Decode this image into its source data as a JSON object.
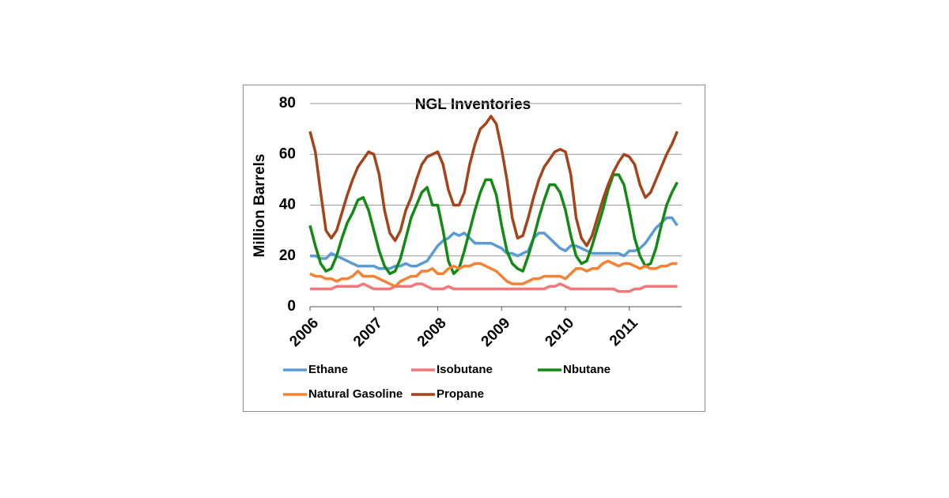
{
  "chart_data": {
    "type": "line",
    "title": "NGL Inventories",
    "y_label": "Million  Barrels",
    "categories": [
      "2006",
      null,
      null,
      null,
      null,
      null,
      null,
      null,
      null,
      null,
      null,
      null,
      "2007",
      null,
      null,
      null,
      null,
      null,
      null,
      null,
      null,
      null,
      null,
      null,
      "2008",
      null,
      null,
      null,
      null,
      null,
      null,
      null,
      null,
      null,
      null,
      null,
      "2009",
      null,
      null,
      null,
      null,
      null,
      null,
      null,
      null,
      null,
      null,
      null,
      "2010",
      null,
      null,
      null,
      null,
      null,
      null,
      null,
      null,
      null,
      null,
      null,
      "2011",
      null,
      null,
      null,
      null,
      null,
      null,
      null,
      null,
      null
    ],
    "series": [
      {
        "name": "Ethane",
        "color": "#5b9bd5",
        "values": [
          20,
          20,
          19,
          19,
          21,
          20,
          19,
          18,
          17,
          16,
          16,
          16,
          16,
          15,
          15,
          15,
          16,
          16,
          17,
          16,
          16,
          17,
          18,
          21,
          24,
          26,
          27,
          29,
          28,
          29,
          27,
          25,
          25,
          25,
          25,
          24,
          23,
          21,
          21,
          20,
          21,
          22,
          27,
          29,
          29,
          27,
          25,
          23,
          22,
          24,
          24,
          23,
          22,
          21,
          21,
          21,
          21,
          21,
          21,
          20,
          22,
          22,
          23,
          25,
          28,
          31,
          33,
          35,
          35,
          32
        ]
      },
      {
        "name": "Isobutane",
        "color": "#f4777a",
        "values": [
          7,
          7,
          7,
          7,
          7,
          8,
          8,
          8,
          8,
          8,
          9,
          8,
          7,
          7,
          7,
          7,
          8,
          8,
          8,
          8,
          9,
          9,
          8,
          7,
          7,
          7,
          8,
          7,
          7,
          7,
          7,
          7,
          7,
          7,
          7,
          7,
          7,
          7,
          7,
          7,
          7,
          7,
          7,
          7,
          7,
          8,
          8,
          9,
          8,
          7,
          7,
          7,
          7,
          7,
          7,
          7,
          7,
          7,
          6,
          6,
          6,
          7,
          7,
          8,
          8,
          8,
          8,
          8,
          8,
          8
        ]
      },
      {
        "name": "Nbutane",
        "color": "#138a13",
        "values": [
          32,
          24,
          17,
          14,
          15,
          20,
          27,
          33,
          37,
          42,
          43,
          38,
          30,
          22,
          16,
          13,
          14,
          19,
          27,
          35,
          40,
          45,
          47,
          40,
          40,
          30,
          18,
          13,
          15,
          22,
          30,
          38,
          45,
          50,
          50,
          44,
          32,
          22,
          17,
          15,
          14,
          20,
          27,
          35,
          42,
          48,
          48,
          45,
          38,
          28,
          20,
          17,
          18,
          24,
          31,
          38,
          46,
          52,
          52,
          48,
          38,
          27,
          20,
          16,
          17,
          23,
          32,
          40,
          45,
          49
        ]
      },
      {
        "name": "Natural Gasoline",
        "color": "#f58233",
        "values": [
          13,
          12,
          12,
          11,
          11,
          10,
          11,
          11,
          12,
          14,
          12,
          12,
          12,
          11,
          10,
          9,
          8,
          10,
          11,
          12,
          12,
          14,
          14,
          15,
          13,
          13,
          15,
          16,
          15,
          16,
          16,
          17,
          17,
          16,
          15,
          14,
          12,
          10,
          9,
          9,
          9,
          10,
          11,
          11,
          12,
          12,
          12,
          12,
          11,
          13,
          15,
          15,
          14,
          15,
          15,
          17,
          18,
          17,
          16,
          17,
          17,
          16,
          15,
          16,
          15,
          15,
          16,
          16,
          17,
          17
        ]
      },
      {
        "name": "Propane",
        "color": "#a5441b",
        "values": [
          69,
          61,
          45,
          30,
          27,
          30,
          37,
          44,
          50,
          55,
          58,
          61,
          60,
          52,
          38,
          29,
          26,
          30,
          38,
          43,
          50,
          56,
          59,
          60,
          61,
          56,
          46,
          40,
          40,
          45,
          56,
          64,
          70,
          72,
          75,
          72,
          62,
          50,
          35,
          27,
          28,
          35,
          43,
          50,
          55,
          58,
          61,
          62,
          61,
          52,
          35,
          27,
          24,
          28,
          35,
          42,
          48,
          53,
          57,
          60,
          59,
          56,
          48,
          43,
          45,
          50,
          55,
          60,
          64,
          69
        ]
      }
    ],
    "ylim": [
      0,
      80
    ],
    "yticks": [
      0,
      20,
      40,
      60,
      80
    ],
    "grid": true
  }
}
